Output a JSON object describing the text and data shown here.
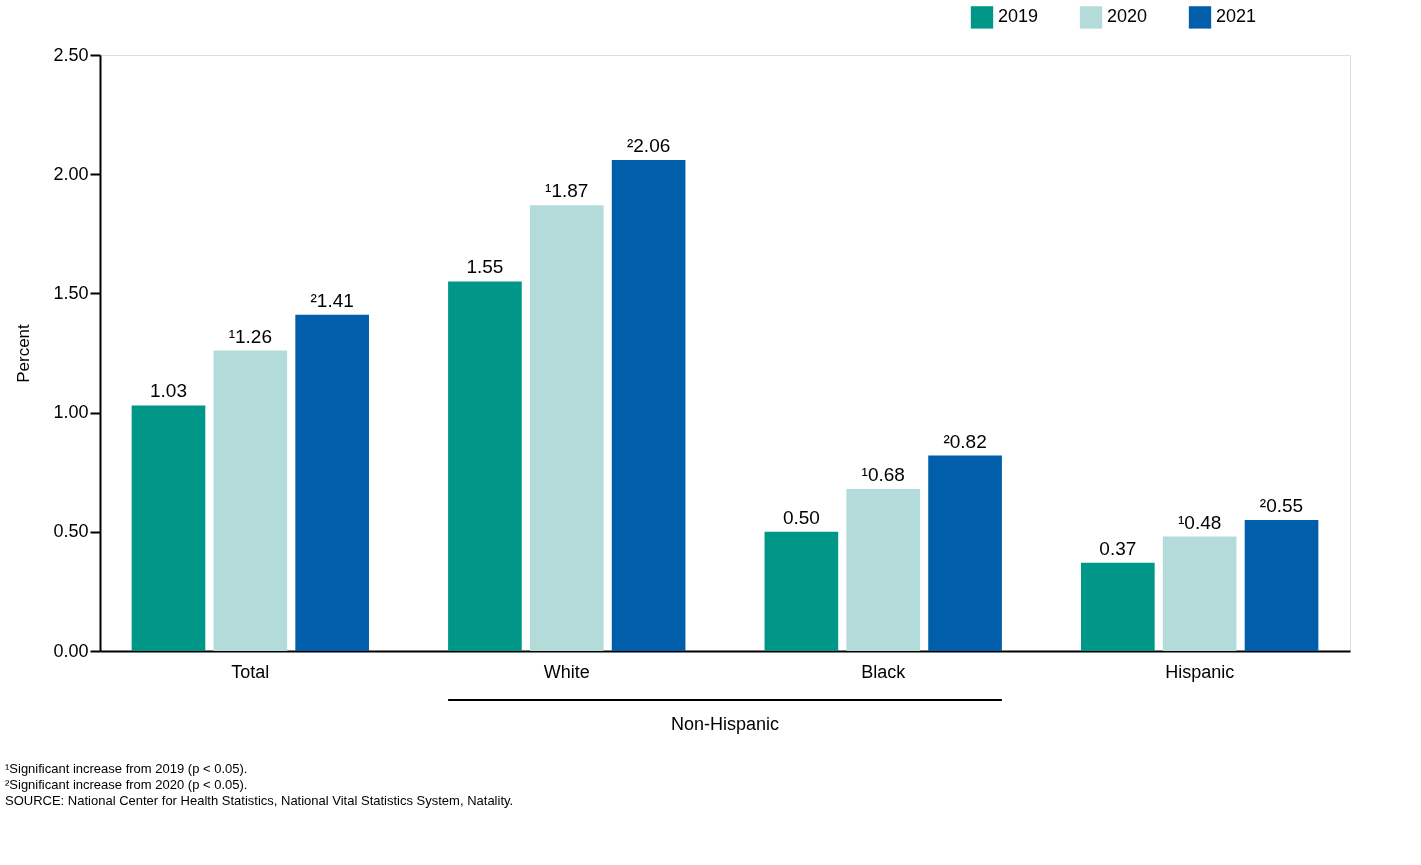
{
  "chart_data": {
    "type": "bar",
    "categories": [
      "Total",
      "White",
      "Black",
      "Hispanic"
    ],
    "ylabel": "Percent",
    "ylim": [
      0,
      2.5
    ],
    "yticks": [
      {
        "value": 0,
        "label": "0.00"
      },
      {
        "value": 0.5,
        "label": "0.50"
      },
      {
        "value": 1,
        "label": "1.00"
      },
      {
        "value": 1.5,
        "label": "1.50"
      },
      {
        "value": 2,
        "label": "2.00"
      },
      {
        "value": 2.5,
        "label": "2.50"
      }
    ],
    "series": [
      {
        "name": "2019",
        "color": "#009688",
        "values": [
          1.03,
          1.55,
          0.5,
          0.37
        ],
        "value_labels": [
          "1.03",
          "1.55",
          "0.50",
          "0.37"
        ]
      },
      {
        "name": "2020",
        "color": "#b3dbd9",
        "values": [
          1.26,
          1.87,
          0.68,
          0.48
        ],
        "value_labels": [
          "¹1.26",
          "¹1.87",
          "¹0.68",
          "¹0.48"
        ]
      },
      {
        "name": "2021",
        "color": "#005eaa",
        "values": [
          1.41,
          2.06,
          0.82,
          0.55
        ],
        "value_labels": [
          "²1.41",
          "²2.06",
          "²0.82",
          "²0.55"
        ]
      }
    ],
    "legend": "top right",
    "grid": false,
    "annotations": [
      "Non-Hispanic",
      "¹Significant increase from 2019  (p < 0.05).",
      "²Significant increase from 2020  (p < 0.05).",
      "SOURCE: National Center for Health Statistics, National Vital Statistics System, Natality."
    ]
  }
}
